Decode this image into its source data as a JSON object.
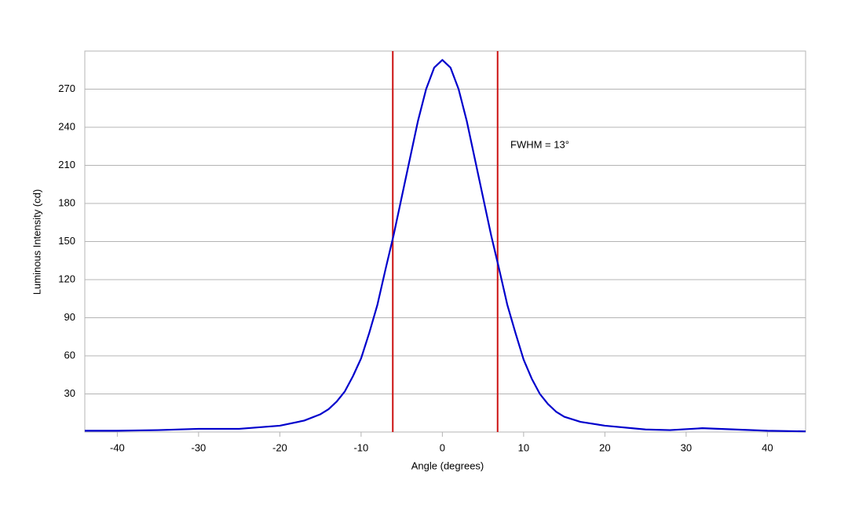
{
  "chart_data": {
    "type": "line",
    "xlabel": "Angle (degrees)",
    "ylabel": "Luminous Intensity (cd)",
    "annotation": "FWHM = 13°",
    "x": [
      -44,
      -40,
      -35,
      -30,
      -25,
      -20,
      -17,
      -15,
      -14,
      -13,
      -12,
      -11,
      -10,
      -9,
      -8,
      -7,
      -6,
      -5,
      -4,
      -3,
      -2,
      -1,
      0,
      1,
      2,
      3,
      4,
      5,
      6,
      7,
      8,
      9,
      10,
      11,
      12,
      13,
      14,
      15,
      17,
      20,
      25,
      28,
      32,
      36,
      40,
      44.7
    ],
    "values": [
      1,
      1,
      1.5,
      2.5,
      2.5,
      5,
      9,
      14,
      18,
      24,
      32,
      44,
      58,
      78,
      100,
      128,
      155,
      185,
      215,
      245,
      270,
      287,
      293,
      287,
      270,
      245,
      215,
      185,
      155,
      128,
      100,
      78,
      57,
      42,
      30,
      22,
      16,
      12,
      8,
      5,
      2,
      1.5,
      3,
      2,
      1,
      0.5
    ],
    "color": "#0000cc",
    "vlines": [
      -6.1,
      6.8
    ],
    "vline_color": "#cc1111",
    "xlim": [
      -44,
      44.7
    ],
    "xticks": [
      -40,
      -30,
      -20,
      -10,
      0,
      10,
      20,
      30,
      40
    ],
    "ylim": [
      0,
      300
    ],
    "yticks": [
      30,
      60,
      90,
      120,
      150,
      180,
      210,
      240,
      270
    ],
    "grid": true
  }
}
